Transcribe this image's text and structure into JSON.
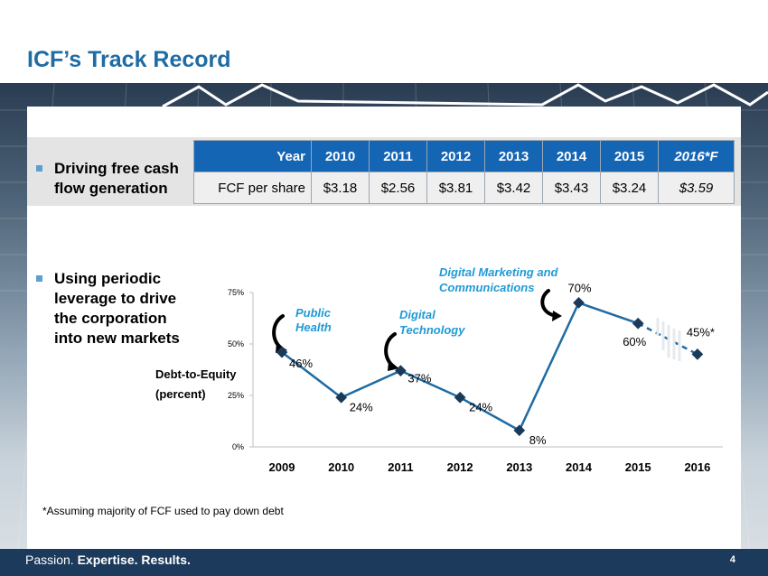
{
  "title": "ICF’s Track Record",
  "bullets": {
    "b1_line1": "Driving free cash",
    "b1_line2": "flow generation",
    "b2_line1": "Using periodic",
    "b2_line2": "leverage to drive",
    "b2_line3": "the corporation",
    "b2_line4": "into new markets"
  },
  "table": {
    "header": [
      "Year",
      "2010",
      "2011",
      "2012",
      "2013",
      "2014",
      "2015",
      "2016*F"
    ],
    "row": [
      "FCF per share",
      "$3.18",
      "$2.56",
      "$3.81",
      "$3.42",
      "$3.43",
      "$3.24",
      "$3.59"
    ]
  },
  "chart_data": {
    "type": "line",
    "ylabel_line1": "Debt-to-Equity",
    "ylabel_line2": "(percent)",
    "categories": [
      "2009",
      "2010",
      "2011",
      "2012",
      "2013",
      "2014",
      "2015",
      "2016"
    ],
    "values": [
      46,
      24,
      37,
      24,
      8,
      70,
      60,
      45
    ],
    "data_labels": [
      "46%",
      "24%",
      "37%",
      "24%",
      "8%",
      "70%",
      "60%",
      "45%*"
    ],
    "yticks": [
      "0%",
      "25%",
      "50%",
      "75%"
    ],
    "ylim": [
      0,
      75
    ],
    "annotations": {
      "a1_line1": "Public",
      "a1_line2": "Health",
      "a2_line1": "Digital",
      "a2_line2": "Technology",
      "a3_line1": "Digital Marketing and",
      "a3_line2": "Communications"
    },
    "line_color": "#1f6ba4",
    "annotation_color": "#1f9ad6"
  },
  "footnote": "*Assuming majority of FCF used to pay down debt",
  "footer": {
    "passion": "Passion.",
    "expertise": "Expertise.",
    "results": "Results."
  },
  "page_number": "4"
}
